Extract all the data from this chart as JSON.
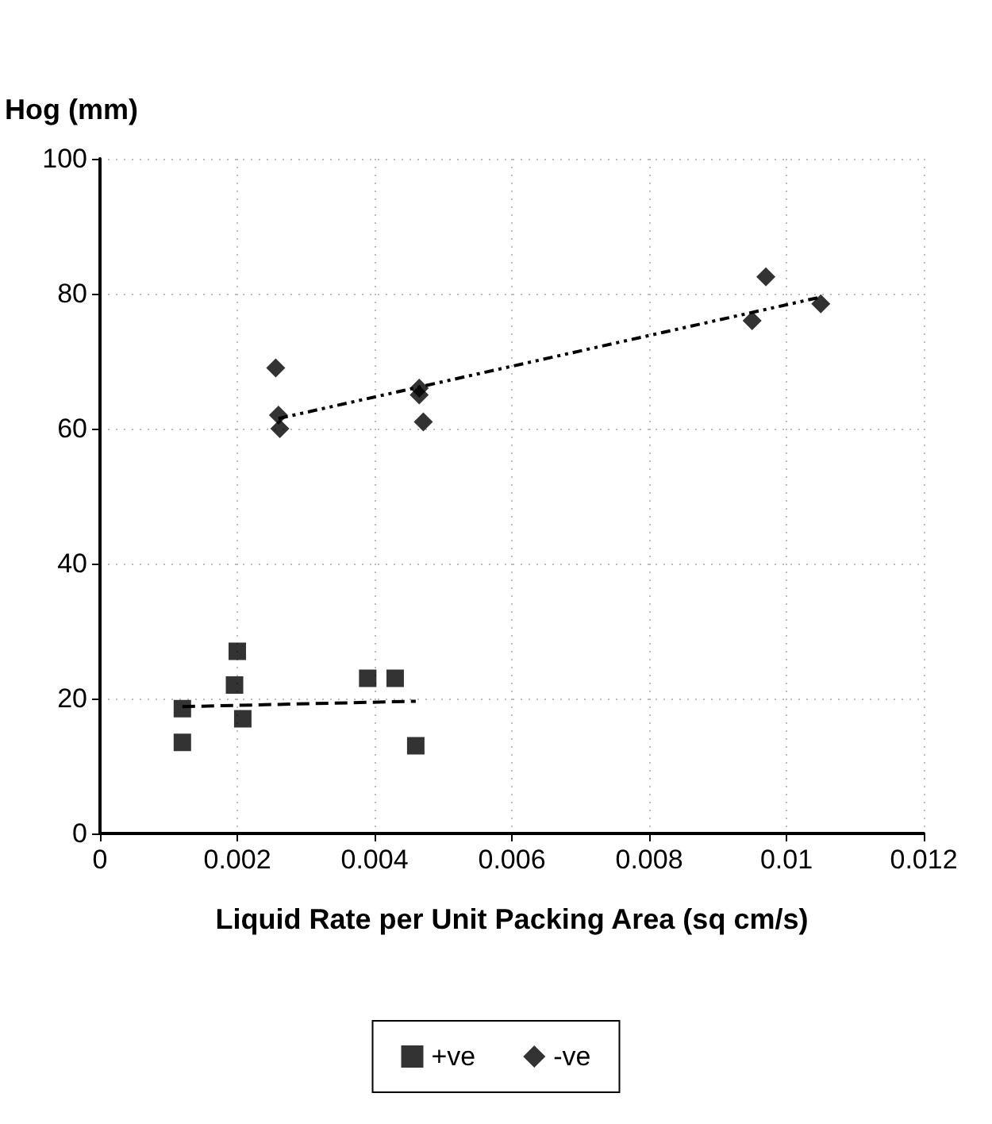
{
  "chart_data": {
    "type": "scatter",
    "xlabel": "Liquid Rate per Unit Packing Area (sq cm/s)",
    "ylabel": "Hog (mm)",
    "xlim": [
      0,
      0.012
    ],
    "xticks": [
      0,
      0.002,
      0.004,
      0.006,
      0.008,
      0.01,
      0.012
    ],
    "ylim": [
      0,
      100
    ],
    "yticks": [
      0,
      20,
      40,
      60,
      80,
      100
    ],
    "grid": true,
    "legend": "bottom",
    "series": [
      {
        "name": "+ve",
        "color": "#000000",
        "marker": "square",
        "x": [
          0.0012,
          0.0012,
          0.002,
          0.00196,
          0.00208,
          0.0039,
          0.0043,
          0.0046
        ],
        "values": [
          18.5,
          13.5,
          27,
          22,
          17,
          23,
          23,
          13
        ]
      },
      {
        "name": "-ve",
        "color": "#000000",
        "marker": "diamond",
        "x": [
          0.00256,
          0.0026,
          0.00262,
          0.00465,
          0.00465,
          0.00471,
          0.0095,
          0.0097,
          0.0105
        ],
        "values": [
          69,
          62,
          60,
          66,
          65,
          61,
          76,
          82.5,
          78.5
        ]
      },
      {
        "type": "line",
        "color": "#000000",
        "line_style": "dashed",
        "marker": "none",
        "x": [
          0.0012,
          0.0046
        ],
        "values": [
          18.8,
          19.6
        ]
      },
      {
        "type": "line",
        "color": "#000000",
        "line_style": "dotted",
        "marker": "none",
        "x": [
          0.0026,
          0.0105
        ],
        "values": [
          61.5,
          79.5
        ]
      }
    ]
  }
}
